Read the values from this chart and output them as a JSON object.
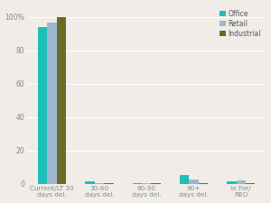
{
  "categories": [
    "Current/LT 30\ndays del.",
    "30-60\ndays del.",
    "60-90\ndays del.",
    "90+\ndays del.",
    "In For/\nREO"
  ],
  "series": {
    "Office": [
      94.0,
      1.2,
      0.4,
      5.0,
      1.5
    ],
    "Retail": [
      96.5,
      0.3,
      0.15,
      2.5,
      1.8
    ],
    "Industrial": [
      100.0,
      0.1,
      0.1,
      0.3,
      0.2
    ]
  },
  "colors": {
    "Office": "#1dbfb8",
    "Retail": "#9db8cc",
    "Industrial": "#6b6b28"
  },
  "ylim": [
    0,
    107
  ],
  "yticks": [
    0,
    20,
    40,
    60,
    80,
    100
  ],
  "yticklabels": [
    "0",
    "20",
    "40",
    "60",
    "80",
    "100%"
  ],
  "bar_width": 0.2,
  "background_color": "#f0ede8",
  "grid_color": "#ffffff",
  "tick_color": "#888888",
  "legend_labels": [
    "Office",
    "Retail",
    "Industrial"
  ]
}
